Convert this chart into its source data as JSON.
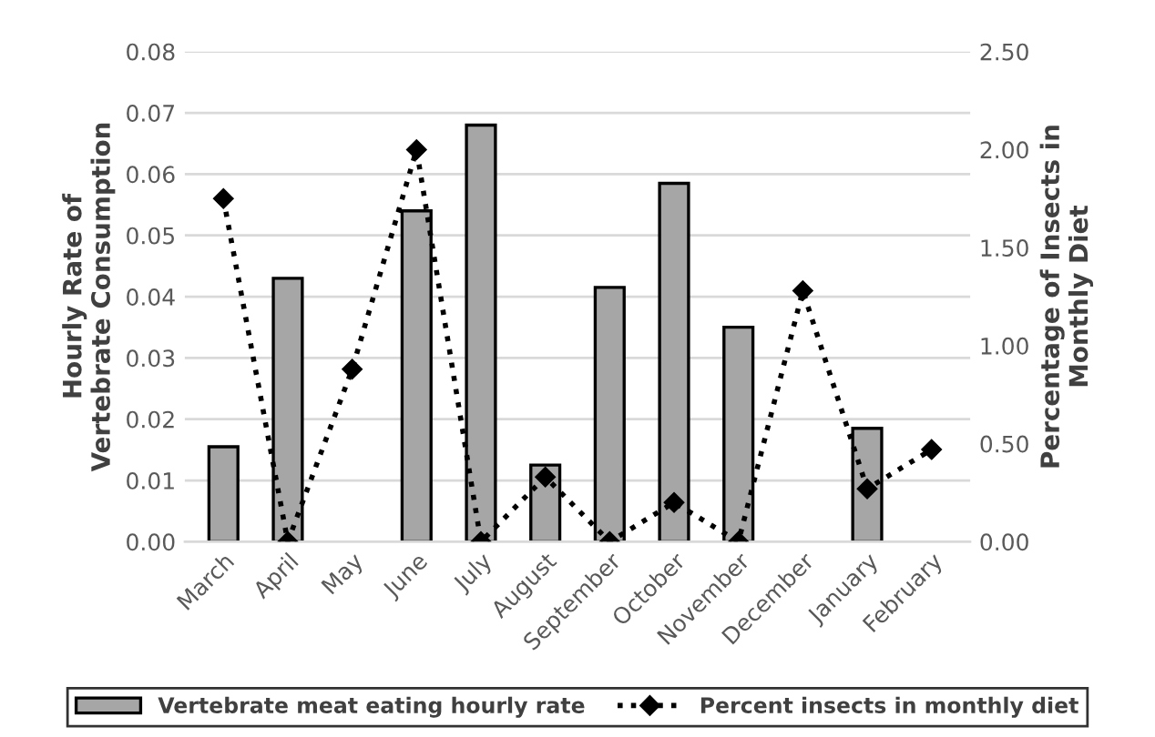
{
  "chart_data": {
    "type": "bar",
    "categories": [
      "March",
      "April",
      "May",
      "June",
      "July",
      "August",
      "September",
      "October",
      "November",
      "December",
      "January",
      "February"
    ],
    "ylabel": "Hourly Rate of\nVertebrate Consumption",
    "y2label": "Percentage of Insects in\nMonthly Diet",
    "series": [
      {
        "name": "Vertebrate meat eating hourly rate",
        "color": "#a6a6a6",
        "values": [
          0.0155,
          0.043,
          null,
          0.054,
          0.068,
          0.0125,
          0.0415,
          0.0585,
          0.035,
          null,
          0.0185,
          null
        ]
      },
      {
        "name": "Percent insects in monthly diet",
        "type": "line",
        "axis": "y2",
        "color": "#000000",
        "marker": "diamond",
        "line_style": "dotted",
        "values": [
          1.75,
          0.0,
          0.88,
          2.0,
          0.0,
          0.33,
          0.0,
          0.2,
          0.0,
          1.28,
          0.27,
          0.47
        ]
      }
    ],
    "ylim": [
      0,
      0.08
    ],
    "yticks": [
      {
        "value": 0,
        "label": "0.00"
      },
      {
        "value": 0.01,
        "label": "0.01"
      },
      {
        "value": 0.02,
        "label": "0.02"
      },
      {
        "value": 0.03,
        "label": "0.03"
      },
      {
        "value": 0.04,
        "label": "0.04"
      },
      {
        "value": 0.05,
        "label": "0.05"
      },
      {
        "value": 0.06,
        "label": "0.06"
      },
      {
        "value": 0.07,
        "label": "0.07"
      },
      {
        "value": 0.08,
        "label": "0.08"
      }
    ],
    "y2lim": [
      0,
      2.5
    ],
    "y2ticks": [
      {
        "value": 0,
        "label": "0.00"
      },
      {
        "value": 0.5,
        "label": "0.50"
      },
      {
        "value": 1.0,
        "label": "1.00"
      },
      {
        "value": 1.5,
        "label": "1.50"
      },
      {
        "value": 2.0,
        "label": "2.00"
      },
      {
        "value": 2.5,
        "label": "2.50"
      }
    ],
    "grid": "y",
    "legend": "bottom"
  }
}
